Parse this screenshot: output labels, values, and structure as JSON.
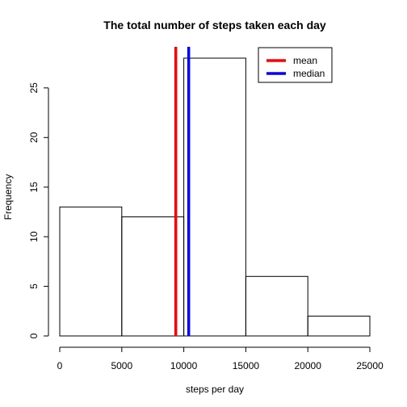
{
  "chart_data": {
    "type": "bar",
    "title": "The total number of steps taken each day",
    "xlabel": "steps per day",
    "ylabel": "Frequency",
    "bins": [
      {
        "from": 0,
        "to": 5000,
        "count": 13
      },
      {
        "from": 5000,
        "to": 10000,
        "count": 12
      },
      {
        "from": 10000,
        "to": 15000,
        "count": 28
      },
      {
        "from": 15000,
        "to": 20000,
        "count": 6
      },
      {
        "from": 20000,
        "to": 25000,
        "count": 2
      }
    ],
    "xlim": [
      0,
      25000
    ],
    "ylim": [
      0,
      28
    ],
    "xticks": [
      0,
      5000,
      10000,
      15000,
      20000,
      25000
    ],
    "yticks": [
      0,
      5,
      10,
      15,
      20,
      25
    ],
    "vlines": [
      {
        "name": "mean",
        "x": 9354,
        "color": "#ff0000"
      },
      {
        "name": "median",
        "x": 10395,
        "color": "#0000ff"
      }
    ],
    "legend": {
      "position": "top-right",
      "entries": [
        {
          "label": "mean",
          "color": "#ff0000"
        },
        {
          "label": "median",
          "color": "#0000ff"
        }
      ]
    },
    "grid": false
  }
}
